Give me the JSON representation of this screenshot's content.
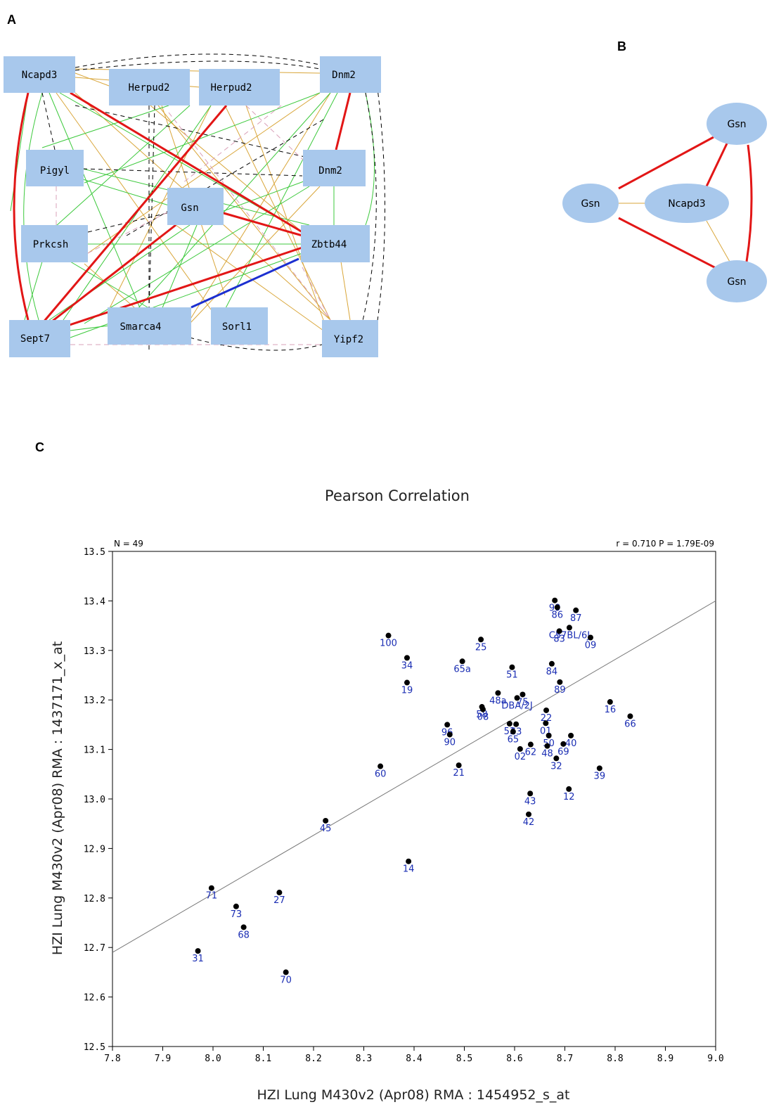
{
  "panels": {
    "a": {
      "letter": "A"
    },
    "b": {
      "letter": "B"
    },
    "c": {
      "letter": "C"
    }
  },
  "colors": {
    "strong_positive": "#e21616",
    "negative": "#1c2fd0",
    "positive": "#3cc93c",
    "weak": "#d9a63a",
    "dashed_black": "#000000",
    "dashed_pink": "#d9a0b8",
    "node_fill": "#a8c8ec",
    "point": "#000000",
    "point_label": "#1a2db3",
    "regression_line": "#777777"
  },
  "network_a": {
    "nodes": [
      "Ncapd3",
      "Herpud2",
      "Herpud2",
      "Dnm2",
      "Pigyl",
      "Dnm2",
      "Gsn",
      "Prkcsh",
      "Zbtb44",
      "Sept7",
      "Smarca4",
      "Sorl1",
      "Yipf2"
    ]
  },
  "network_b": {
    "nodes": [
      "Gsn",
      "Gsn",
      "Ncapd3",
      "Gsn"
    ]
  },
  "chart_data": {
    "type": "scatter",
    "title": "Pearson Correlation",
    "xlabel": "HZI Lung M430v2 (Apr08) RMA : 1454952_s_at",
    "ylabel": "HZI Lung M430v2 (Apr08) RMA : 1437171_x_at",
    "xlim": [
      7.8,
      9.0
    ],
    "ylim": [
      12.5,
      13.5
    ],
    "xticks": [
      "7.8",
      "7.9",
      "8.0",
      "8.1",
      "8.2",
      "8.3",
      "8.4",
      "8.5",
      "8.6",
      "8.7",
      "8.8",
      "8.9",
      "9.0"
    ],
    "yticks": [
      "12.5",
      "12.6",
      "12.7",
      "12.8",
      "12.9",
      "13.0",
      "13.1",
      "13.2",
      "13.3",
      "13.4",
      "13.5"
    ],
    "n_label": "N = 49",
    "stats_label": "r = 0.710 P = 1.79E-09",
    "regression": {
      "x": [
        7.8,
        9.0
      ],
      "y": [
        12.69,
        13.4
      ]
    },
    "points": [
      {
        "label": "100",
        "x": 8.349,
        "y": 13.33
      },
      {
        "label": "34",
        "x": 8.386,
        "y": 13.285
      },
      {
        "label": "19",
        "x": 8.386,
        "y": 13.235
      },
      {
        "label": "25",
        "x": 8.533,
        "y": 13.322
      },
      {
        "label": "65a",
        "x": 8.496,
        "y": 13.278
      },
      {
        "label": "51",
        "x": 8.595,
        "y": 13.266
      },
      {
        "label": "84",
        "x": 8.674,
        "y": 13.273
      },
      {
        "label": "89",
        "x": 8.69,
        "y": 13.236
      },
      {
        "label": "99",
        "x": 8.68,
        "y": 13.401
      },
      {
        "label": "86",
        "x": 8.685,
        "y": 13.387
      },
      {
        "label": "87",
        "x": 8.722,
        "y": 13.381
      },
      {
        "label": "C57BL/6J",
        "x": 8.709,
        "y": 13.346
      },
      {
        "label": "83",
        "x": 8.689,
        "y": 13.339
      },
      {
        "label": "09",
        "x": 8.751,
        "y": 13.326
      },
      {
        "label": "48a",
        "x": 8.567,
        "y": 13.214
      },
      {
        "label": "75",
        "x": 8.616,
        "y": 13.211
      },
      {
        "label": "DBA/2J",
        "x": 8.605,
        "y": 13.204
      },
      {
        "label": "58",
        "x": 8.535,
        "y": 13.186
      },
      {
        "label": "08",
        "x": 8.537,
        "y": 13.181
      },
      {
        "label": "22",
        "x": 8.663,
        "y": 13.179
      },
      {
        "label": "16",
        "x": 8.79,
        "y": 13.196
      },
      {
        "label": "66",
        "x": 8.83,
        "y": 13.167
      },
      {
        "label": "96",
        "x": 8.466,
        "y": 13.15
      },
      {
        "label": "90",
        "x": 8.471,
        "y": 13.13
      },
      {
        "label": "53",
        "x": 8.59,
        "y": 13.152
      },
      {
        "label": "63",
        "x": 8.603,
        "y": 13.151
      },
      {
        "label": "65",
        "x": 8.597,
        "y": 13.136
      },
      {
        "label": "01",
        "x": 8.662,
        "y": 13.153
      },
      {
        "label": "50",
        "x": 8.668,
        "y": 13.128
      },
      {
        "label": "40",
        "x": 8.712,
        "y": 13.128
      },
      {
        "label": "62",
        "x": 8.632,
        "y": 13.11
      },
      {
        "label": "69",
        "x": 8.697,
        "y": 13.111
      },
      {
        "label": "02",
        "x": 8.611,
        "y": 13.101
      },
      {
        "label": "48",
        "x": 8.665,
        "y": 13.107
      },
      {
        "label": "32",
        "x": 8.683,
        "y": 13.082
      },
      {
        "label": "60",
        "x": 8.333,
        "y": 13.066
      },
      {
        "label": "21",
        "x": 8.489,
        "y": 13.068
      },
      {
        "label": "39",
        "x": 8.769,
        "y": 13.062
      },
      {
        "label": "12",
        "x": 8.708,
        "y": 13.02
      },
      {
        "label": "43",
        "x": 8.631,
        "y": 13.011
      },
      {
        "label": "42",
        "x": 8.628,
        "y": 12.969
      },
      {
        "label": "45",
        "x": 8.224,
        "y": 12.956
      },
      {
        "label": "14",
        "x": 8.389,
        "y": 12.874
      },
      {
        "label": "71",
        "x": 7.997,
        "y": 12.82
      },
      {
        "label": "27",
        "x": 8.132,
        "y": 12.811
      },
      {
        "label": "73",
        "x": 8.046,
        "y": 12.783
      },
      {
        "label": "68",
        "x": 8.061,
        "y": 12.741
      },
      {
        "label": "31",
        "x": 7.97,
        "y": 12.693
      },
      {
        "label": "70",
        "x": 8.145,
        "y": 12.65
      }
    ]
  }
}
